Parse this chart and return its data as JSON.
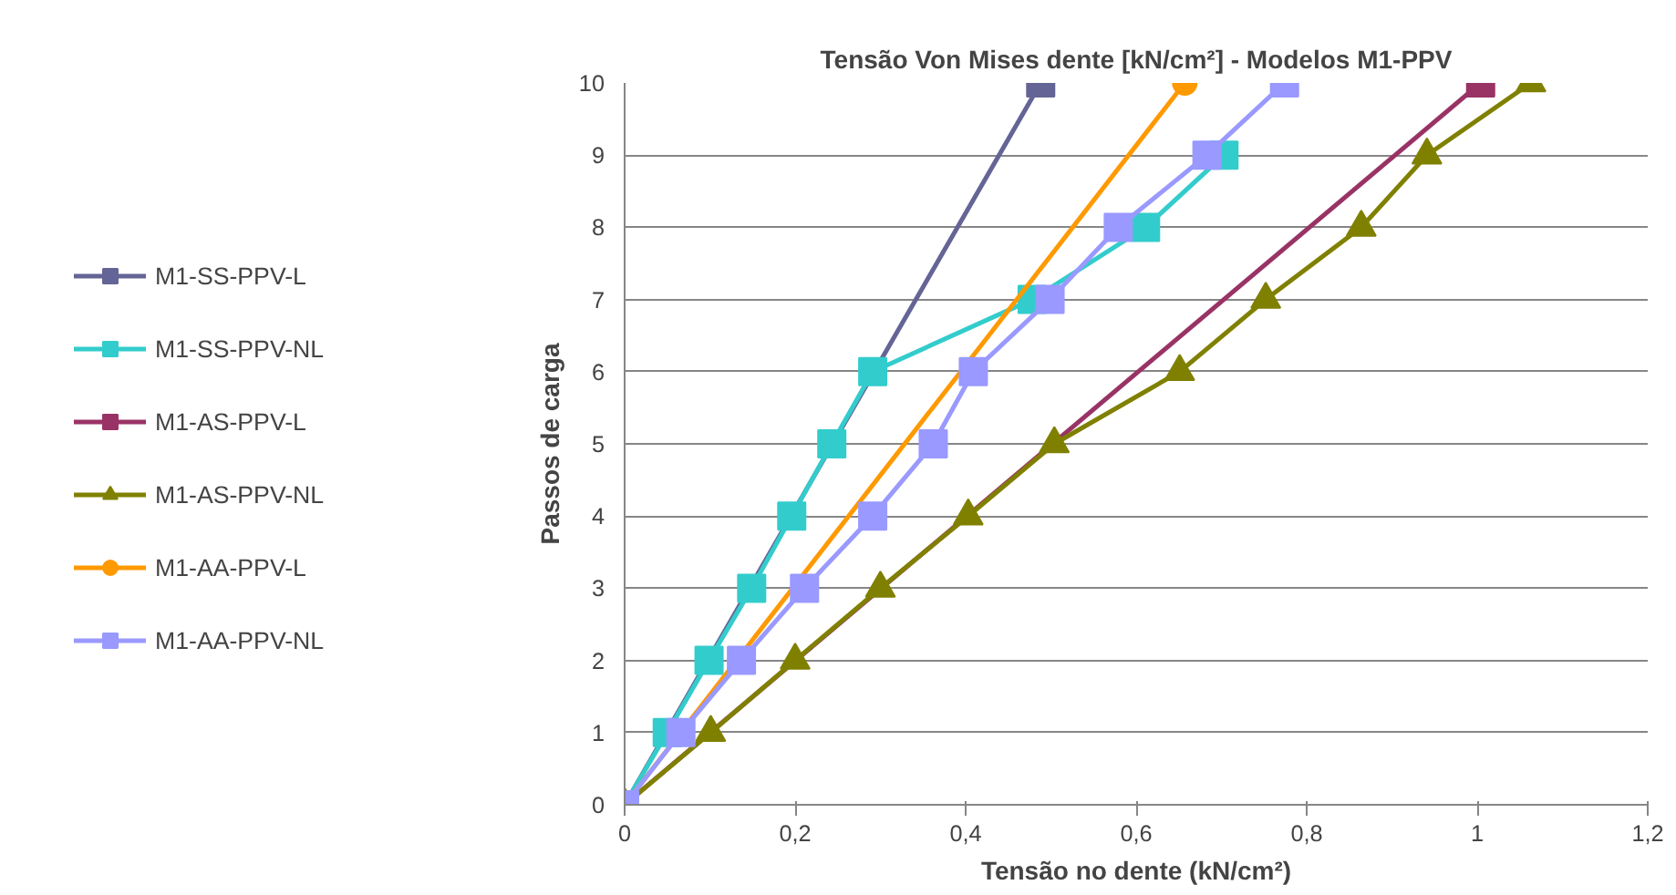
{
  "chart_data": {
    "type": "line",
    "title": "Tensão Von Mises dente [kN/cm²] - Modelos M1-PPV",
    "xlabel": "Tensão no dente (kN/cm²)",
    "ylabel": "Passos de carga",
    "xlim": [
      0,
      1.2
    ],
    "xticks": [
      0,
      {
        "value": 0.2,
        "label": "0,2"
      },
      {
        "value": 0.4,
        "label": "0,4"
      },
      {
        "value": 0.6,
        "label": "0,6"
      },
      {
        "value": 0.8,
        "label": "0,8"
      },
      1,
      {
        "value": 1.2,
        "label": "1,2"
      }
    ],
    "ylim": [
      0,
      10
    ],
    "yticks": [
      0,
      1,
      2,
      3,
      4,
      5,
      6,
      7,
      8,
      9,
      10
    ],
    "grid": "y",
    "legend": "left",
    "series": [
      {
        "name": "M1-SS-PPV-L",
        "color": "#646496",
        "marker": "square",
        "x": [
          0,
          0.488
        ],
        "values": [
          0,
          10
        ]
      },
      {
        "name": "M1-SS-PPV-NL",
        "color": "#33cccc",
        "marker": "square",
        "x": [
          0,
          0.05,
          0.099,
          0.149,
          0.196,
          0.243,
          0.291,
          0.478,
          0.611,
          0.703
        ],
        "values": [
          0,
          1,
          2,
          3,
          4,
          5,
          6,
          7,
          8,
          9
        ]
      },
      {
        "name": "M1-AS-PPV-L",
        "color": "#993366",
        "marker": "square",
        "x": [
          0,
          1.004
        ],
        "values": [
          0,
          10
        ]
      },
      {
        "name": "M1-AS-PPV-NL",
        "color": "#808000",
        "marker": "triangle",
        "x": [
          0,
          0.101,
          0.2,
          0.3,
          0.403,
          0.504,
          0.651,
          0.752,
          0.864,
          0.941,
          1.063
        ],
        "values": [
          0,
          1,
          2,
          3,
          4,
          5,
          6,
          7,
          8,
          9,
          10
        ]
      },
      {
        "name": "M1-AA-PPV-L",
        "color": "#ff9900",
        "marker": "circle",
        "x": [
          0,
          0.657
        ],
        "values": [
          0,
          10
        ]
      },
      {
        "name": "M1-AA-PPV-NL",
        "color": "#9999ff",
        "marker": "square",
        "x": [
          0,
          0.066,
          0.137,
          0.211,
          0.291,
          0.362,
          0.409,
          0.499,
          0.579,
          0.683,
          0.774
        ],
        "values": [
          0,
          1,
          2,
          3,
          4,
          5,
          6,
          7,
          8,
          9,
          10
        ]
      }
    ]
  }
}
